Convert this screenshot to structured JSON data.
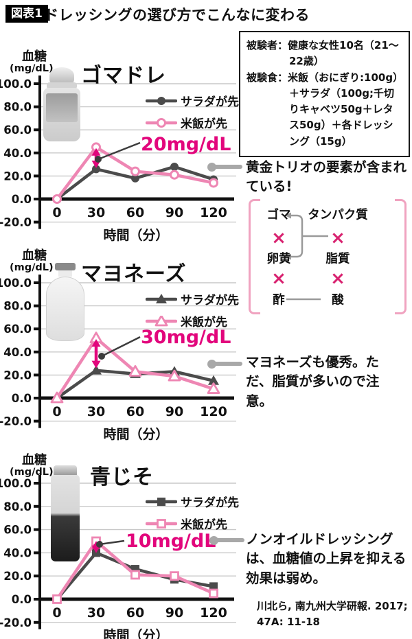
{
  "header": {
    "badge": "図表1",
    "title": "ドレッシングの選び方でこんなに変わる"
  },
  "info_box": {
    "rows": [
      {
        "label": "被験者：",
        "text": "健康な女性10名（21〜22歳）"
      },
      {
        "label": "被験食：",
        "text": "米飯（おにぎり:100g）＋サラダ（100g;千切りキャベツ50g＋レタス50g）＋各ドレッシング（15g）"
      }
    ]
  },
  "chart_data": [
    {
      "type": "line",
      "title": "ゴマドレ",
      "ylabel1": "血糖",
      "ylabel2": "(mg/dL)",
      "xlabel": "時間（分）",
      "x": [
        0,
        30,
        60,
        90,
        120
      ],
      "yticks": [
        100,
        80,
        60,
        40,
        20,
        0,
        -20
      ],
      "ylim": [
        -20,
        100
      ],
      "grid": true,
      "legend_position": "upper right",
      "series": [
        {
          "name": "サラダが先",
          "marker": "circle-solid",
          "color": "#4b4b4b",
          "values": [
            0,
            26,
            18,
            28,
            17
          ]
        },
        {
          "name": "米飯が先",
          "marker": "circle-open",
          "color": "#ee86b3",
          "values": [
            0,
            45,
            24,
            21,
            14
          ]
        }
      ],
      "diff_label": "20mg/dL",
      "diff_at_x": 30,
      "diff_span": [
        28,
        43
      ]
    },
    {
      "type": "line",
      "title": "マヨネーズ",
      "ylabel1": "血糖",
      "ylabel2": "(mg/dL)",
      "xlabel": "時間（分）",
      "x": [
        0,
        30,
        60,
        90,
        120
      ],
      "yticks": [
        100,
        80,
        60,
        40,
        20,
        0,
        -20
      ],
      "ylim": [
        -20,
        100
      ],
      "grid": true,
      "legend_position": "upper right",
      "series": [
        {
          "name": "サラダが先",
          "marker": "triangle-solid",
          "color": "#4b4b4b",
          "values": [
            0,
            24,
            21,
            23,
            15
          ]
        },
        {
          "name": "米飯が先",
          "marker": "triangle-open",
          "color": "#ee86b3",
          "values": [
            0,
            52,
            23,
            19,
            8
          ]
        }
      ],
      "diff_label": "30mg/dL",
      "diff_at_x": 30,
      "diff_span": [
        27,
        50
      ]
    },
    {
      "type": "line",
      "title": "青じそ",
      "ylabel1": "血糖",
      "ylabel2": "(mg/dL)",
      "xlabel": "時間（分）",
      "x": [
        0,
        30,
        60,
        90,
        120
      ],
      "yticks": [
        100,
        80,
        60,
        40,
        20,
        0,
        -20
      ],
      "ylim": [
        -20,
        100
      ],
      "grid": true,
      "legend_position": "upper right",
      "series": [
        {
          "name": "サラダが先",
          "marker": "square-solid",
          "color": "#4b4b4b",
          "values": [
            0,
            40,
            26,
            17,
            11
          ]
        },
        {
          "name": "米飯が先",
          "marker": "square-open",
          "color": "#ee86b3",
          "values": [
            0,
            50,
            21,
            20,
            5
          ]
        }
      ],
      "diff_label": "10mg/dL",
      "diff_at_x": 30,
      "diff_span": [
        41,
        49
      ]
    }
  ],
  "annotations": {
    "gomadore": "黄金トリオの要素が含まれている!",
    "mayo": "マヨネーズも優秀。ただ、脂質が多いので注意。",
    "nonoil": "ノンオイルドレッシングは、血糖値の上昇を抑える効果は弱め。"
  },
  "relation_diagram": {
    "left_column": [
      "ゴマ",
      "×",
      "卵黄",
      "×",
      "酢"
    ],
    "right_column": [
      "タンパク質",
      "×",
      "脂質",
      "×",
      "酸"
    ]
  },
  "citation": "川北ら, 南九州大学研報. 2017; 47A: 11-18",
  "colors": {
    "magenta": "#e2067c",
    "series_pink": "#ee86b3",
    "series_dark": "#4b4b4b",
    "leader_gray": "#a8a8a8",
    "gridline": "#c9c9c9",
    "cross_pink": "#d8216f",
    "bracket_pink": "#f0a3c0"
  }
}
